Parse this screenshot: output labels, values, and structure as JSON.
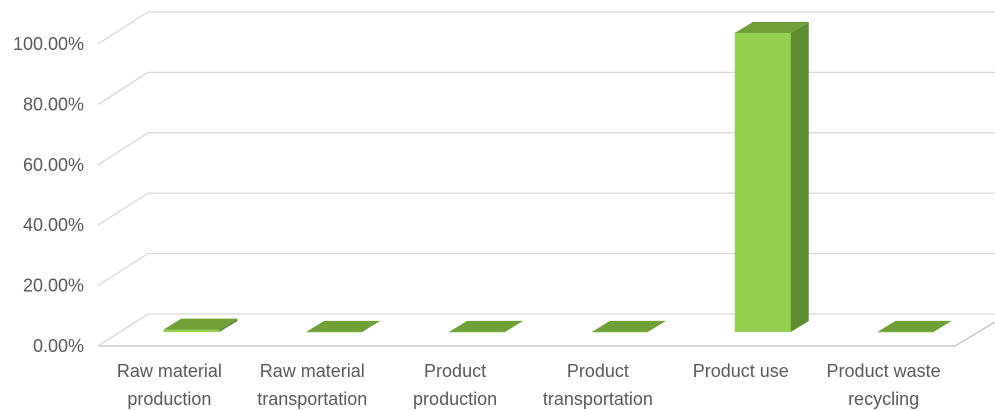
{
  "chart_data": {
    "type": "bar",
    "title": "",
    "xlabel": "",
    "ylabel": "",
    "ylim": [
      0,
      100
    ],
    "yticks": [
      "0.00%",
      "20.00%",
      "40.00%",
      "60.00%",
      "80.00%",
      "100.00%"
    ],
    "categories": [
      [
        "Raw material",
        "production"
      ],
      [
        "Raw material",
        "transportation"
      ],
      [
        "Product",
        "production"
      ],
      [
        "Product",
        "transportation"
      ],
      [
        "Product use",
        ""
      ],
      [
        "Product waste",
        "recycling"
      ]
    ],
    "values": [
      0.8,
      0.05,
      0.05,
      0.05,
      99.0,
      0.05
    ],
    "colors": {
      "front": "#92d050",
      "side": "#5e8c31",
      "top": "#70a038",
      "grid": "#d9d9d9",
      "axis": "#595959"
    }
  }
}
